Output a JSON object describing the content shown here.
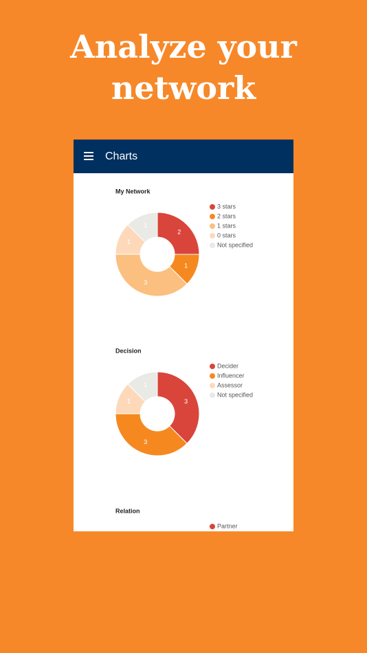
{
  "header": {
    "title_lines": [
      "Analyze your",
      "network"
    ]
  },
  "app_bar": {
    "title": "Charts"
  },
  "charts": [
    {
      "type": "pie",
      "title": "My Network",
      "categories": [
        "3 stars",
        "2 stars",
        "1 stars",
        "0 stars",
        "Not specified"
      ],
      "values": [
        2,
        1,
        3,
        1,
        1
      ],
      "colors": [
        "#d9453a",
        "#f5891f",
        "#fbbf7f",
        "#fdd9b9",
        "#e9e9e5"
      ]
    },
    {
      "type": "pie",
      "title": "Decision",
      "categories": [
        "Decider",
        "Influencer",
        "Assessor",
        "Not specified"
      ],
      "values": [
        3,
        3,
        1,
        1
      ],
      "colors": [
        "#d9453a",
        "#f5891f",
        "#fdd9b9",
        "#e9e9e5"
      ]
    },
    {
      "type": "pie",
      "title": "Relation",
      "categories": [
        "Partner"
      ],
      "colors": [
        "#d9453a"
      ]
    }
  ]
}
